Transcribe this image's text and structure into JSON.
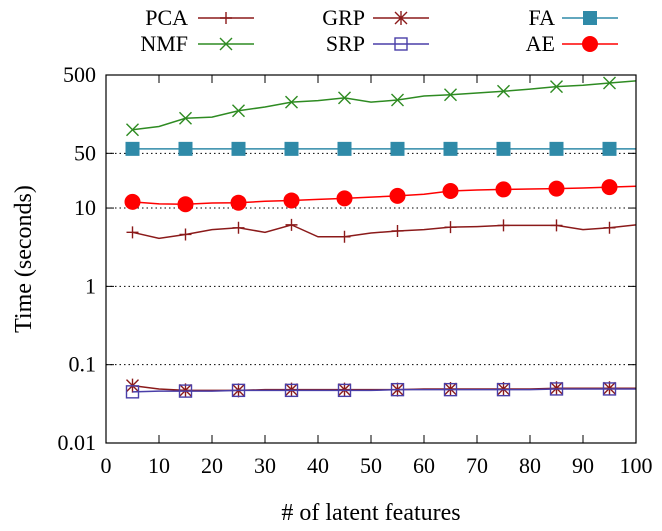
{
  "chart_data": {
    "type": "line",
    "title": "",
    "xlabel": "# of latent features",
    "ylabel": "Time (seconds)",
    "x_scale": "linear",
    "y_scale": "log",
    "xlim": [
      0,
      100
    ],
    "ylim": [
      0.01,
      500
    ],
    "x_ticks": [
      0,
      10,
      20,
      30,
      40,
      50,
      60,
      70,
      80,
      90,
      100
    ],
    "y_ticks": [
      0.01,
      0.1,
      1,
      10,
      50,
      500
    ],
    "y_tick_labels": [
      "0.01",
      "0.1",
      "1",
      "10",
      "50",
      "500"
    ],
    "grid": "dotted horizontal",
    "legend_position": "top",
    "series": [
      {
        "name": "PCA",
        "color": "#8b1a1a",
        "marker": "plus",
        "x": [
          5,
          10,
          15,
          20,
          25,
          30,
          35,
          40,
          45,
          50,
          55,
          60,
          65,
          70,
          75,
          80,
          85,
          90,
          95,
          100
        ],
        "y": [
          4.9,
          4.1,
          4.6,
          5.3,
          5.6,
          4.9,
          6.1,
          4.3,
          4.3,
          4.8,
          5.1,
          5.3,
          5.7,
          5.8,
          6.0,
          6.0,
          6.0,
          5.3,
          5.6,
          6.1
        ]
      },
      {
        "name": "NMF",
        "color": "#2e8b22",
        "marker": "x",
        "x": [
          5,
          10,
          15,
          20,
          25,
          30,
          35,
          40,
          45,
          50,
          55,
          60,
          65,
          70,
          75,
          80,
          85,
          90,
          95,
          100
        ],
        "y": [
          100,
          110,
          140,
          145,
          175,
          195,
          225,
          235,
          255,
          225,
          240,
          270,
          280,
          295,
          310,
          330,
          355,
          370,
          395,
          420
        ]
      },
      {
        "name": "GRP",
        "color": "#8b1a1a",
        "marker": "asterisk",
        "x": [
          5,
          10,
          15,
          20,
          25,
          30,
          35,
          40,
          45,
          50,
          55,
          60,
          65,
          70,
          75,
          80,
          85,
          90,
          95,
          100
        ],
        "y": [
          0.054,
          0.049,
          0.047,
          0.047,
          0.047,
          0.048,
          0.048,
          0.048,
          0.048,
          0.048,
          0.048,
          0.049,
          0.049,
          0.049,
          0.049,
          0.049,
          0.05,
          0.05,
          0.05,
          0.05
        ]
      },
      {
        "name": "SRP",
        "color": "#4a3fa8",
        "marker": "open-square",
        "x": [
          5,
          10,
          15,
          20,
          25,
          30,
          35,
          40,
          45,
          50,
          55,
          60,
          65,
          70,
          75,
          80,
          85,
          90,
          95,
          100
        ],
        "y": [
          0.045,
          0.046,
          0.046,
          0.046,
          0.047,
          0.047,
          0.047,
          0.047,
          0.047,
          0.047,
          0.048,
          0.048,
          0.048,
          0.048,
          0.048,
          0.048,
          0.049,
          0.049,
          0.049,
          0.049
        ]
      },
      {
        "name": "FA",
        "color": "#2f8aa8",
        "marker": "filled-square",
        "x": [
          5,
          10,
          15,
          20,
          25,
          30,
          35,
          40,
          45,
          50,
          55,
          60,
          65,
          70,
          75,
          80,
          85,
          90,
          95,
          100
        ],
        "y": [
          57,
          57,
          57,
          57,
          57,
          57,
          57,
          57,
          57,
          57,
          57,
          57,
          57,
          57,
          57,
          57,
          57,
          57,
          57,
          57
        ]
      },
      {
        "name": "AE",
        "color": "#ff0000",
        "marker": "filled-circle",
        "x": [
          5,
          10,
          15,
          20,
          25,
          30,
          35,
          40,
          45,
          50,
          55,
          60,
          65,
          70,
          75,
          80,
          85,
          90,
          95,
          100
        ],
        "y": [
          12.0,
          11.3,
          11.2,
          11.6,
          11.7,
          12.2,
          12.5,
          12.9,
          13.3,
          13.8,
          14.3,
          15.0,
          16.5,
          17.0,
          17.3,
          17.5,
          17.7,
          18.0,
          18.5,
          19.0
        ]
      }
    ]
  }
}
